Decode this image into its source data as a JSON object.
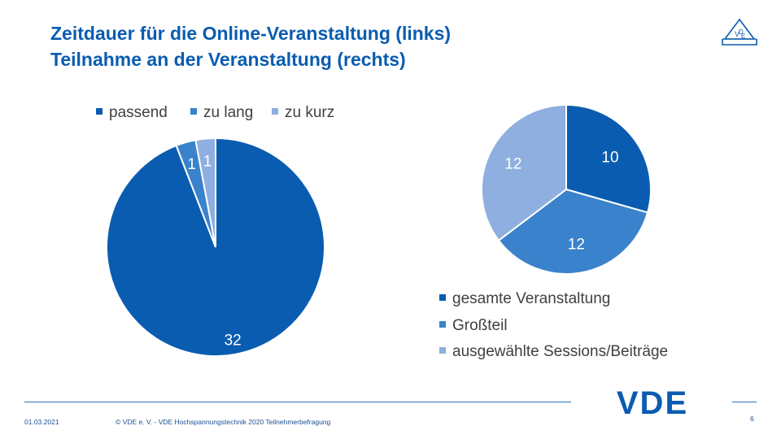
{
  "title": {
    "line1": "Zeitdauer für die Online-Veranstaltung (links)",
    "line2": "Teilnahme an der Veranstaltung (rechts)"
  },
  "chart_data": [
    {
      "type": "pie",
      "categories": [
        "passend",
        "zu lang",
        "zu kurz"
      ],
      "values": [
        32,
        1,
        1
      ],
      "colors": [
        "#0a5cb0",
        "#3a82cb",
        "#8eafdf"
      ],
      "legend_position": "top"
    },
    {
      "type": "pie",
      "categories": [
        "gesamte Veranstaltung",
        "Großteil",
        "ausgewählte Sessions/Beiträge"
      ],
      "values": [
        10,
        12,
        12
      ],
      "colors": [
        "#0a5cb0",
        "#3a82cb",
        "#8eafdf"
      ],
      "legend_position": "bottom"
    }
  ],
  "footer": {
    "date": "01.03.2021",
    "copyright": "© VDE e. V. - VDE Hochspannungstechnik 2020 Teilnehmerbefragung",
    "page": "6"
  },
  "logo": {
    "text": "VDE",
    "color": "#0a5cb0",
    "small_icon": "vde-seal-icon"
  }
}
